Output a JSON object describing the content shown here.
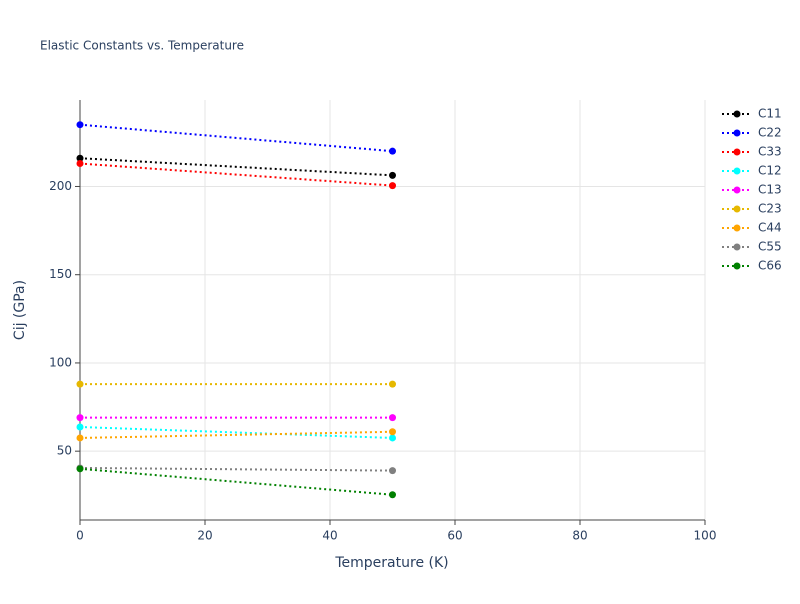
{
  "chart_data": {
    "type": "line",
    "title": "Elastic Constants vs. Temperature",
    "x_label": "Temperature (K)",
    "y_label": "Cij (GPa)",
    "x": [
      0,
      50
    ],
    "series": [
      {
        "name": "C11",
        "color": "#000000",
        "values": [
          216,
          206.3
        ]
      },
      {
        "name": "C22",
        "color": "#0000ff",
        "values": [
          235,
          220
        ]
      },
      {
        "name": "C33",
        "color": "#ff0000",
        "values": [
          213,
          200.5
        ]
      },
      {
        "name": "C12",
        "color": "#00ffff",
        "values": [
          63.7,
          57.5
        ]
      },
      {
        "name": "C13",
        "color": "#ff00ff",
        "values": [
          69,
          69
        ]
      },
      {
        "name": "C23",
        "color": "#e6b800",
        "values": [
          88,
          88
        ]
      },
      {
        "name": "C44",
        "color": "#ffa500",
        "values": [
          57.5,
          61
        ]
      },
      {
        "name": "C55",
        "color": "#808080",
        "values": [
          40.5,
          39
        ]
      },
      {
        "name": "C66",
        "color": "#008000",
        "values": [
          40,
          25.3
        ]
      }
    ],
    "xlim": [
      0,
      100
    ],
    "xticks": [
      0,
      20,
      40,
      60,
      80,
      100
    ],
    "ylim": [
      11,
      249
    ],
    "yticks": [
      50,
      100,
      150,
      200
    ],
    "grid": true,
    "legend": "right"
  }
}
